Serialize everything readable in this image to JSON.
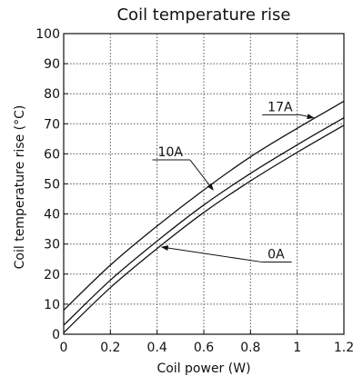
{
  "chart_data": {
    "type": "line",
    "title": "Coil temperature rise",
    "xlabel": "Coil power (W)",
    "ylabel": "Coil temperature rise (°C)",
    "xlim": [
      0,
      1.2
    ],
    "ylim": [
      0,
      100
    ],
    "x_ticks": [
      "0",
      "0.2",
      "0.4",
      "0.6",
      "0.8",
      "1",
      "1.2"
    ],
    "y_ticks": [
      "0",
      "10",
      "20",
      "30",
      "40",
      "50",
      "60",
      "70",
      "80",
      "90",
      "100"
    ],
    "grid": true,
    "series": [
      {
        "name": "17A",
        "x": [
          0,
          0.2,
          0.4,
          0.6,
          0.8,
          1.0,
          1.2
        ],
        "y": [
          8,
          23,
          36,
          48,
          59,
          68.5,
          77.5
        ]
      },
      {
        "name": "10A",
        "x": [
          0,
          0.2,
          0.4,
          0.6,
          0.8,
          1.0,
          1.2
        ],
        "y": [
          3,
          18,
          31,
          43,
          53.5,
          63,
          72
        ]
      },
      {
        "name": "0A",
        "x": [
          0,
          0.2,
          0.4,
          0.6,
          0.8,
          1.0,
          1.2
        ],
        "y": [
          0.5,
          15.5,
          28.5,
          40.5,
          51,
          60.5,
          69.5
        ]
      }
    ],
    "annotations": [
      {
        "series": "17A",
        "text": "17A",
        "label_x": 0.85,
        "label_y": 73,
        "arrow_x": 1.07,
        "arrow_y": 72
      },
      {
        "series": "10A",
        "text": "10A",
        "label_x": 0.38,
        "label_y": 58,
        "arrow_x": 0.64,
        "arrow_y": 48
      },
      {
        "series": "0A",
        "text": "0A",
        "label_x": 0.85,
        "label_y": 24,
        "arrow_x": 0.42,
        "arrow_y": 29
      }
    ]
  }
}
